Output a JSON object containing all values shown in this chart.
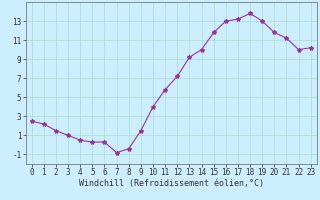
{
  "x": [
    0,
    1,
    2,
    3,
    4,
    5,
    6,
    7,
    8,
    9,
    10,
    11,
    12,
    13,
    14,
    15,
    16,
    17,
    18,
    19,
    20,
    21,
    22,
    23
  ],
  "y": [
    2.5,
    2.2,
    1.5,
    1.0,
    0.5,
    0.3,
    0.3,
    -0.8,
    -0.4,
    1.5,
    4.0,
    5.8,
    7.2,
    9.2,
    10.0,
    11.8,
    13.0,
    13.2,
    13.8,
    13.0,
    11.8,
    11.2,
    10.0,
    10.2
  ],
  "line_color": "#993399",
  "marker": "*",
  "marker_size": 3,
  "bg_color": "#cceeff",
  "grid_color": "#aaddcc",
  "xlabel": "Windchill (Refroidissement éolien,°C)",
  "xlim": [
    -0.5,
    23.5
  ],
  "ylim": [
    -2,
    15
  ],
  "xticks": [
    0,
    1,
    2,
    3,
    4,
    5,
    6,
    7,
    8,
    9,
    10,
    11,
    12,
    13,
    14,
    15,
    16,
    17,
    18,
    19,
    20,
    21,
    22,
    23
  ],
  "yticks": [
    -1,
    1,
    3,
    5,
    7,
    9,
    11,
    13
  ],
  "tick_fontsize": 5.5,
  "xlabel_fontsize": 6,
  "axis_color": "#666666"
}
